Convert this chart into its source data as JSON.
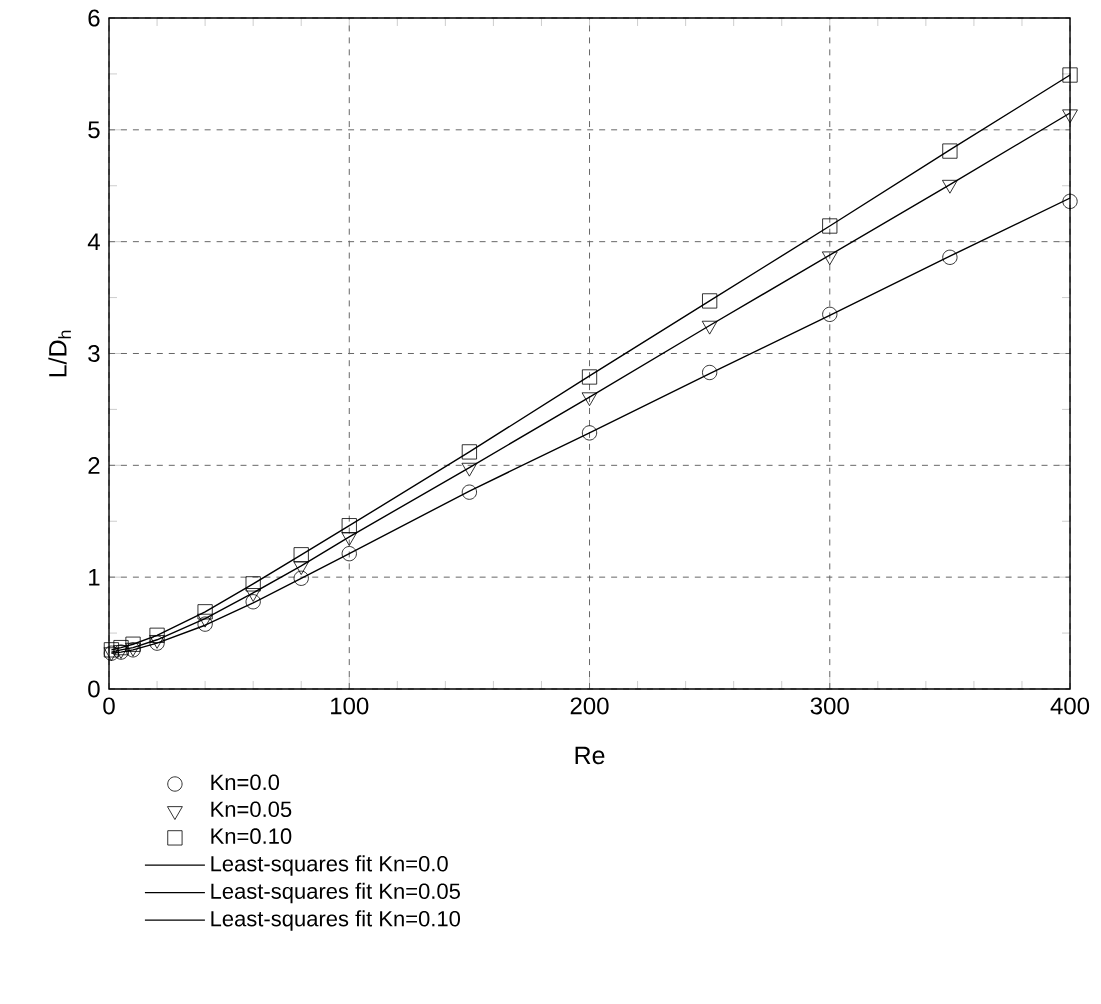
{
  "chart_data": {
    "type": "scatter",
    "xlabel": "Re",
    "ylabel": "L/D$_{h}$",
    "xlim": [
      0,
      400
    ],
    "xticks": [
      0,
      100,
      200,
      300,
      400
    ],
    "ylim": [
      0,
      6
    ],
    "yticks": [
      0,
      1,
      2,
      3,
      4,
      5,
      6
    ],
    "grid": true,
    "legend": "bottom left",
    "series": [
      {
        "name": "Kn=0.0",
        "marker": "circle",
        "color": "#000000",
        "x": [
          1,
          5,
          10,
          20,
          40,
          60,
          80,
          100,
          150,
          200,
          250,
          300,
          350,
          400
        ],
        "values": [
          0.32,
          0.33,
          0.35,
          0.41,
          0.58,
          0.78,
          0.99,
          1.21,
          1.76,
          2.29,
          2.83,
          3.35,
          3.86,
          4.36
        ]
      },
      {
        "name": "Kn=0.05",
        "marker": "triangle",
        "color": "#000000",
        "x": [
          1,
          5,
          10,
          20,
          40,
          60,
          80,
          100,
          150,
          200,
          250,
          300,
          350,
          400
        ],
        "values": [
          0.33,
          0.35,
          0.37,
          0.44,
          0.63,
          0.86,
          1.1,
          1.36,
          1.98,
          2.61,
          3.25,
          3.87,
          4.51,
          5.14
        ]
      },
      {
        "name": "Kn=0.10",
        "marker": "square",
        "color": "#000000",
        "x": [
          1,
          5,
          10,
          20,
          40,
          60,
          80,
          100,
          150,
          200,
          250,
          300,
          350,
          400
        ],
        "values": [
          0.35,
          0.37,
          0.4,
          0.48,
          0.69,
          0.94,
          1.2,
          1.46,
          2.12,
          2.79,
          3.47,
          4.14,
          4.81,
          5.49
        ]
      },
      {
        "name": "Least-squares fit Kn=0.0",
        "type": "line",
        "line_style": "solid",
        "color": "#000000",
        "x": [
          1,
          5,
          10,
          20,
          40,
          60,
          80,
          100,
          150,
          200,
          250,
          300,
          350,
          400
        ],
        "values": [
          0.32,
          0.33,
          0.35,
          0.41,
          0.57,
          0.77,
          0.99,
          1.21,
          1.77,
          2.29,
          2.82,
          3.34,
          3.87,
          4.39
        ]
      },
      {
        "name": "Least-squares fit Kn=0.05",
        "type": "line",
        "line_style": "solid",
        "color": "#000000",
        "x": [
          1,
          5,
          10,
          20,
          40,
          60,
          80,
          100,
          150,
          200,
          250,
          300,
          350,
          400
        ],
        "values": [
          0.33,
          0.35,
          0.37,
          0.44,
          0.63,
          0.86,
          1.1,
          1.36,
          1.98,
          2.61,
          3.25,
          3.88,
          4.51,
          5.15
        ]
      },
      {
        "name": "Least-squares fit Kn=0.10",
        "type": "line",
        "line_style": "solid",
        "color": "#000000",
        "x": [
          1,
          5,
          10,
          20,
          40,
          60,
          80,
          100,
          150,
          200,
          250,
          300,
          350,
          400
        ],
        "values": [
          0.35,
          0.37,
          0.4,
          0.48,
          0.69,
          0.94,
          1.2,
          1.46,
          2.12,
          2.8,
          3.47,
          4.14,
          4.82,
          5.49
        ]
      }
    ]
  }
}
